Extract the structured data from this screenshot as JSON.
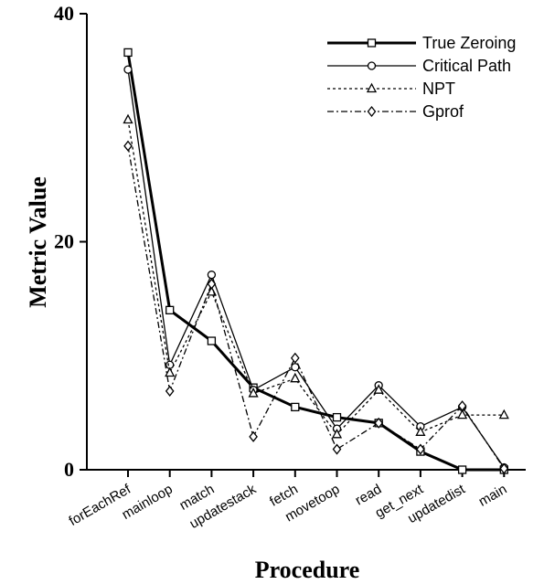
{
  "chart_data": {
    "type": "line",
    "title": "",
    "xlabel": "Procedure",
    "ylabel": "Metric Value",
    "categories": [
      "forEachRef",
      "mainloop",
      "match",
      "updatestack",
      "fetch",
      "movetoop",
      "read",
      "get_next",
      "updatedist",
      "main"
    ],
    "yticks": [
      "0",
      "20",
      "40"
    ],
    "ylim": [
      0,
      40
    ],
    "grid": false,
    "legend_position": "top-right",
    "series": [
      {
        "name": "True Zeroing",
        "style": "solid-bold",
        "marker": "square",
        "values": [
          36.6,
          14.0,
          11.3,
          7.2,
          5.5,
          4.6,
          4.1,
          1.6,
          0.0,
          0.0
        ]
      },
      {
        "name": "Critical Path",
        "style": "solid",
        "marker": "circle",
        "values": [
          35.1,
          9.2,
          17.1,
          7.0,
          9.0,
          3.6,
          7.4,
          3.8,
          5.5,
          0.2
        ]
      },
      {
        "name": "NPT",
        "style": "dotted",
        "marker": "triangle",
        "values": [
          30.7,
          8.5,
          15.6,
          6.7,
          8.0,
          3.1,
          7.0,
          3.3,
          4.8,
          4.8
        ]
      },
      {
        "name": "Gprof",
        "style": "dashdot",
        "marker": "diamond",
        "values": [
          28.4,
          6.9,
          16.3,
          2.9,
          9.8,
          1.8,
          4.1,
          1.8,
          5.6,
          0.1
        ]
      }
    ]
  }
}
